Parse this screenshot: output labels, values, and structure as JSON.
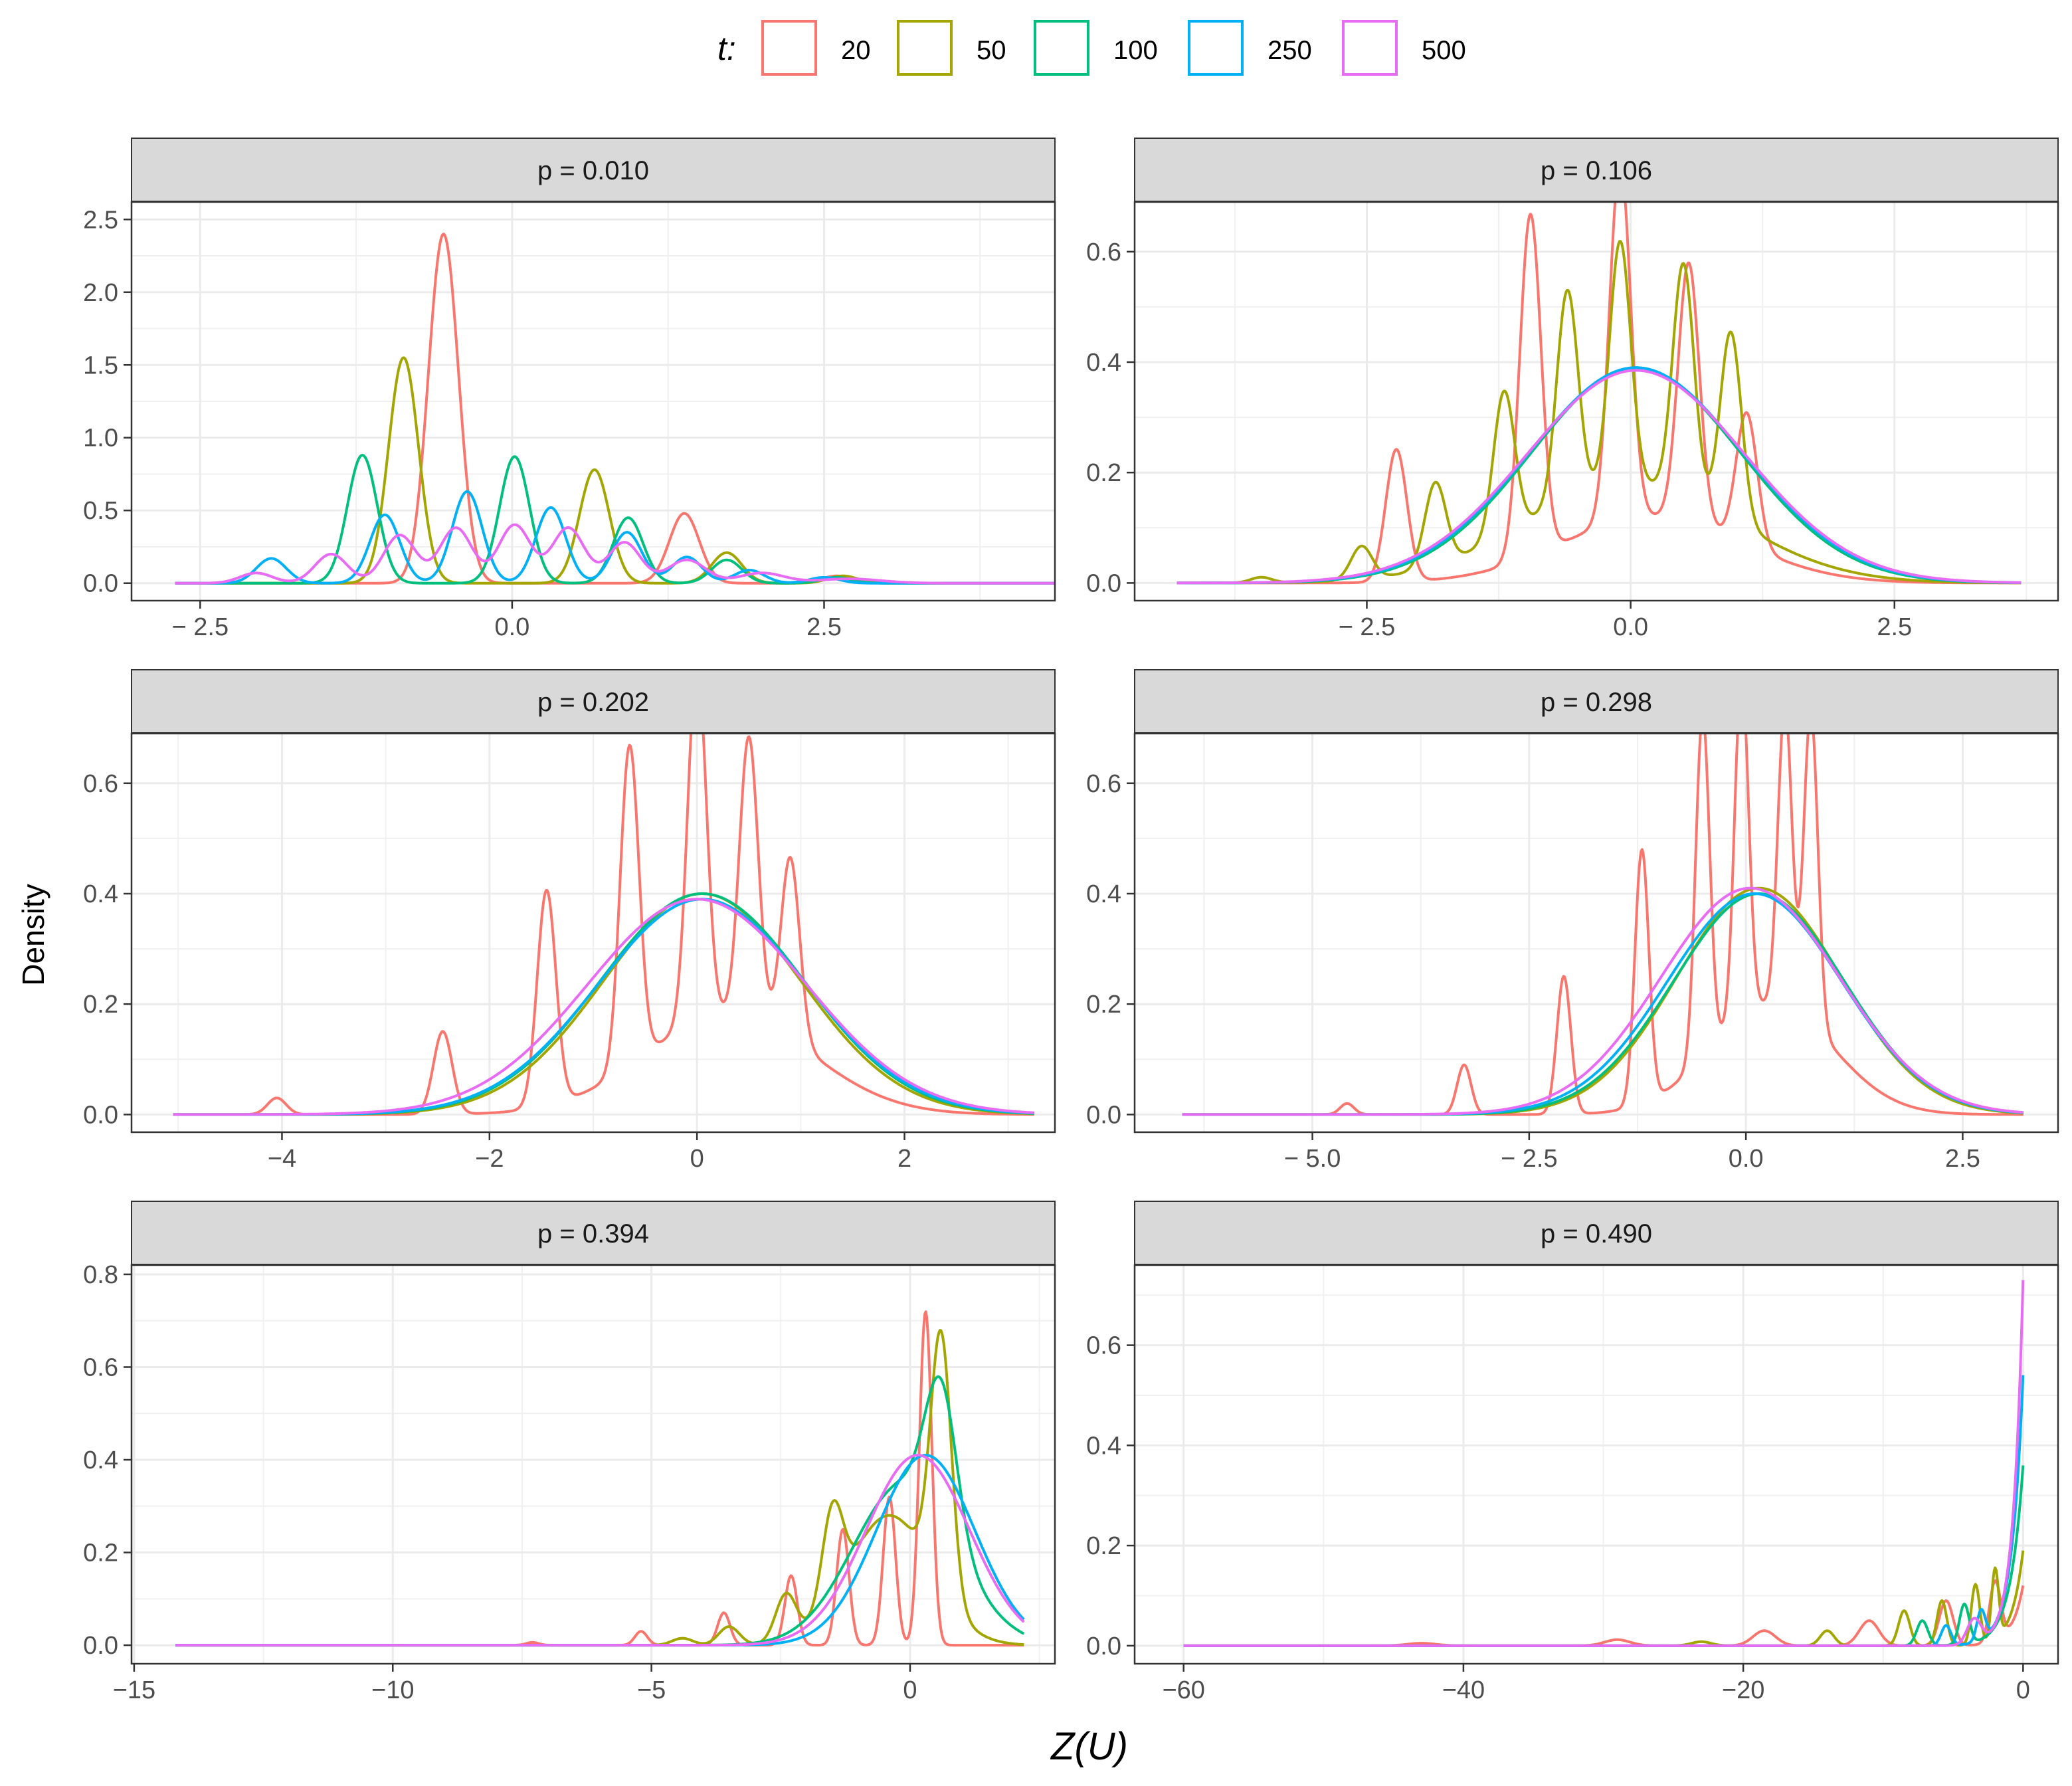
{
  "chart_data": {
    "type": "line",
    "chart_kind": "faceted density curves",
    "xlabel": "Z(U)",
    "ylabel": "Density",
    "legend": {
      "title": "t:",
      "position": "top",
      "entries": [
        {
          "label": "20",
          "color": "#F8766D"
        },
        {
          "label": "50",
          "color": "#A3A500"
        },
        {
          "label": "100",
          "color": "#00BF7D"
        },
        {
          "label": "250",
          "color": "#00B0F6"
        },
        {
          "label": "500",
          "color": "#E76BF3"
        }
      ]
    },
    "panels": [
      {
        "label": "p = 0.010",
        "xlim": [
          -3.05,
          4.35
        ],
        "ylim": [
          -0.12,
          2.62
        ],
        "xticks": [
          -2.5,
          0,
          2.5
        ],
        "xtick_labels": [
          "− 2.5",
          "0.0",
          "2.5"
        ],
        "yticks": [
          0,
          0.5,
          1,
          1.5,
          2,
          2.5
        ],
        "ytick_labels": [
          "0.0",
          "0.5",
          "1.0",
          "1.5",
          "2.0",
          "2.5"
        ],
        "domain": [
          -2.7,
          4.5
        ],
        "series": [
          {
            "name": "20",
            "peaks": [
              [
                -0.55,
                2.4,
                0.12
              ],
              [
                1.38,
                0.48,
                0.12
              ],
              [
                2.6,
                0.05,
                0.12
              ]
            ]
          },
          {
            "name": "50",
            "peaks": [
              [
                -0.87,
                1.55,
                0.12
              ],
              [
                0.66,
                0.78,
                0.12
              ],
              [
                1.72,
                0.21,
                0.12
              ],
              [
                2.65,
                0.05,
                0.12
              ]
            ]
          },
          {
            "name": "100",
            "peaks": [
              [
                -1.2,
                0.88,
                0.12
              ],
              [
                0.02,
                0.87,
                0.12
              ],
              [
                0.93,
                0.45,
                0.12
              ],
              [
                1.72,
                0.16,
                0.12
              ],
              [
                2.6,
                0.04,
                0.12
              ]
            ]
          },
          {
            "name": "250",
            "peaks": [
              [
                -1.93,
                0.17,
                0.12
              ],
              [
                -1.02,
                0.47,
                0.12
              ],
              [
                -0.36,
                0.63,
                0.12
              ],
              [
                0.31,
                0.52,
                0.12
              ],
              [
                0.92,
                0.35,
                0.12
              ],
              [
                1.4,
                0.18,
                0.12
              ],
              [
                1.9,
                0.09,
                0.12
              ],
              [
                2.5,
                0.04,
                0.12
              ]
            ]
          },
          {
            "name": "500",
            "peaks": [
              [
                -2.05,
                0.07,
                0.13
              ],
              [
                -1.45,
                0.2,
                0.13
              ],
              [
                -0.9,
                0.33,
                0.13
              ],
              [
                -0.45,
                0.38,
                0.13
              ],
              [
                0.02,
                0.4,
                0.13
              ],
              [
                0.45,
                0.38,
                0.13
              ],
              [
                0.9,
                0.28,
                0.13
              ],
              [
                1.4,
                0.16,
                0.15
              ],
              [
                2.0,
                0.07,
                0.18
              ],
              [
                2.7,
                0.03,
                0.25
              ]
            ]
          }
        ]
      },
      {
        "label": "p = 0.106",
        "xlim": [
          -4.7,
          4.05
        ],
        "ylim": [
          -0.032,
          0.69
        ],
        "xticks": [
          -2.5,
          0,
          2.5
        ],
        "xtick_labels": [
          "− 2.5",
          "0.0",
          "2.5"
        ],
        "yticks": [
          0,
          0.2,
          0.4,
          0.6
        ],
        "ytick_labels": [
          "0.0",
          "0.2",
          "0.4",
          "0.6"
        ],
        "domain": [
          -4.3,
          3.7
        ],
        "series": [
          {
            "name": "20",
            "peaks": [
              [
                -2.22,
                0.24,
                0.1
              ],
              [
                -0.95,
                0.62,
                0.1
              ],
              [
                -0.1,
                0.65,
                0.1
              ],
              [
                0.55,
                0.47,
                0.1
              ],
              [
                1.1,
                0.24,
                0.1
              ]
            ],
            "base": {
              "mu": 0.2,
              "sigma": 0.85,
              "amp": 0.12
            }
          },
          {
            "name": "50",
            "peaks": [
              [
                -3.5,
                0.01,
                0.1
              ],
              [
                -2.55,
                0.06,
                0.1
              ],
              [
                -1.85,
                0.15,
                0.1
              ],
              [
                -1.2,
                0.26,
                0.1
              ],
              [
                -0.6,
                0.38,
                0.1
              ],
              [
                -0.1,
                0.44,
                0.1
              ],
              [
                0.5,
                0.42,
                0.1
              ],
              [
                0.95,
                0.34,
                0.1
              ]
            ],
            "base": {
              "mu": 0.0,
              "sigma": 1.0,
              "amp": 0.18
            }
          },
          {
            "name": "100",
            "base": {
              "mu": 0.05,
              "sigma": 0.99,
              "amp": 0.39
            }
          },
          {
            "name": "250",
            "base": {
              "mu": 0.05,
              "sigma": 1.01,
              "amp": 0.39
            }
          },
          {
            "name": "500",
            "base": {
              "mu": 0.05,
              "sigma": 1.03,
              "amp": 0.385
            }
          }
        ]
      },
      {
        "label": "p = 0.202",
        "xlim": [
          -5.45,
          3.45
        ],
        "ylim": [
          -0.032,
          0.69
        ],
        "xticks": [
          -4,
          -2,
          0,
          2
        ],
        "xtick_labels": [
          "−4",
          "−2",
          "0",
          "2"
        ],
        "yticks": [
          0,
          0.2,
          0.4,
          0.6
        ],
        "ytick_labels": [
          "0.0",
          "0.2",
          "0.4",
          "0.6"
        ],
        "domain": [
          -5.05,
          3.25
        ],
        "series": [
          {
            "name": "20",
            "peaks": [
              [
                -4.05,
                0.03,
                0.09
              ],
              [
                -2.45,
                0.15,
                0.09
              ],
              [
                -1.45,
                0.39,
                0.09
              ],
              [
                -0.65,
                0.58,
                0.09
              ],
              [
                0.0,
                0.65,
                0.09
              ],
              [
                0.5,
                0.51,
                0.09
              ],
              [
                0.9,
                0.33,
                0.09
              ]
            ],
            "base": {
              "mu": 0.3,
              "sigma": 0.8,
              "amp": 0.18
            }
          },
          {
            "name": "50",
            "base": {
              "mu": 0.05,
              "sigma": 0.95,
              "amp": 0.4
            }
          },
          {
            "name": "100",
            "base": {
              "mu": 0.05,
              "sigma": 0.98,
              "amp": 0.4
            }
          },
          {
            "name": "250",
            "base": {
              "mu": 0.05,
              "sigma": 1.0,
              "amp": 0.39
            }
          },
          {
            "name": "500",
            "base": {
              "mu": 0.0,
              "sigma": 1.05,
              "amp": 0.39
            }
          }
        ]
      },
      {
        "label": "p = 0.298",
        "xlim": [
          -7.05,
          3.6
        ],
        "ylim": [
          -0.032,
          0.69
        ],
        "xticks": [
          -5,
          -2.5,
          0,
          2.5
        ],
        "xtick_labels": [
          "− 5.0",
          "− 2.5",
          "0.0",
          "2.5"
        ],
        "yticks": [
          0,
          0.2,
          0.4,
          0.6
        ],
        "ytick_labels": [
          "0.0",
          "0.2",
          "0.4",
          "0.6"
        ],
        "domain": [
          -6.5,
          3.2
        ],
        "series": [
          {
            "name": "20",
            "peaks": [
              [
                -4.6,
                0.02,
                0.08
              ],
              [
                -3.25,
                0.09,
                0.08
              ],
              [
                -2.1,
                0.25,
                0.08
              ],
              [
                -1.2,
                0.46,
                0.08
              ],
              [
                -0.5,
                0.62,
                0.08
              ],
              [
                -0.05,
                0.62,
                0.08
              ],
              [
                0.45,
                0.55,
                0.08
              ],
              [
                0.75,
                0.57,
                0.08
              ]
            ],
            "base": {
              "mu": 0.3,
              "sigma": 0.7,
              "amp": 0.2
            }
          },
          {
            "name": "50",
            "base": {
              "mu": 0.15,
              "sigma": 0.95,
              "amp": 0.41
            }
          },
          {
            "name": "100",
            "base": {
              "mu": 0.15,
              "sigma": 0.98,
              "amp": 0.4
            }
          },
          {
            "name": "250",
            "base": {
              "mu": 0.1,
              "sigma": 1.0,
              "amp": 0.4
            }
          },
          {
            "name": "500",
            "base": {
              "mu": 0.05,
              "sigma": 1.03,
              "amp": 0.41
            }
          }
        ]
      },
      {
        "label": "p = 0.394",
        "xlim": [
          -15.05,
          2.8
        ],
        "ylim": [
          -0.04,
          0.82
        ],
        "xticks": [
          -15,
          -10,
          -5,
          0
        ],
        "xtick_labels": [
          "−15",
          "−10",
          "−5",
          "0"
        ],
        "yticks": [
          0,
          0.2,
          0.4,
          0.6,
          0.8
        ],
        "ytick_labels": [
          "0.0",
          "0.2",
          "0.4",
          "0.6",
          "0.8"
        ],
        "domain": [
          -14.2,
          2.2
        ],
        "series": [
          {
            "name": "20",
            "peaks": [
              [
                -7.3,
                0.006,
                0.12
              ],
              [
                -5.2,
                0.03,
                0.12
              ],
              [
                -3.6,
                0.07,
                0.12
              ],
              [
                -2.3,
                0.15,
                0.12
              ],
              [
                -1.3,
                0.25,
                0.12
              ],
              [
                -0.4,
                0.32,
                0.12
              ],
              [
                0.3,
                0.72,
                0.12
              ]
            ]
          },
          {
            "name": "50",
            "peaks": [
              [
                -4.4,
                0.015,
                0.2
              ],
              [
                -3.5,
                0.04,
                0.2
              ],
              [
                -2.4,
                0.1,
                0.2
              ],
              [
                -1.5,
                0.2,
                0.2
              ],
              [
                0.6,
                0.55,
                0.2
              ]
            ],
            "base": {
              "mu": -0.4,
              "sigma": 0.8,
              "amp": 0.28
            }
          },
          {
            "name": "100",
            "peaks": [
              [
                0.6,
                0.3,
                0.3
              ]
            ],
            "base": {
              "mu": -0.1,
              "sigma": 1.0,
              "amp": 0.35
            }
          },
          {
            "name": "250",
            "base": {
              "mu": 0.3,
              "sigma": 0.95,
              "amp": 0.41
            }
          },
          {
            "name": "500",
            "base": {
              "mu": 0.15,
              "sigma": 1.0,
              "amp": 0.41
            }
          }
        ]
      },
      {
        "label": "p = 0.490",
        "xlim": [
          -63.5,
          2.5
        ],
        "ylim": [
          -0.036,
          0.76
        ],
        "xticks": [
          -60,
          -40,
          -20,
          0
        ],
        "xtick_labels": [
          "−60",
          "−40",
          "−20",
          "0"
        ],
        "yticks": [
          0,
          0.2,
          0.4,
          0.6
        ],
        "ytick_labels": [
          "0.0",
          "0.2",
          "0.4",
          "0.6"
        ],
        "domain": [
          -60,
          0
        ],
        "series": [
          {
            "name": "20",
            "peaks": [
              [
                -43,
                0.005,
                1.0
              ],
              [
                -29,
                0.012,
                0.9
              ],
              [
                -18.5,
                0.03,
                0.8
              ],
              [
                -11,
                0.05,
                0.7
              ],
              [
                -5.5,
                0.09,
                0.5
              ],
              [
                -2,
                0.12,
                0.4
              ]
            ],
            "tail": {
              "amp": 0.12,
              "scale": 0.8
            }
          },
          {
            "name": "50",
            "peaks": [
              [
                -23,
                0.008,
                0.7
              ],
              [
                -14,
                0.03,
                0.5
              ],
              [
                -8.5,
                0.07,
                0.4
              ],
              [
                -5.8,
                0.09,
                0.35
              ],
              [
                -3.4,
                0.12,
                0.3
              ],
              [
                -2.0,
                0.14,
                0.25
              ]
            ],
            "tail": {
              "amp": 0.19,
              "scale": 0.8
            }
          },
          {
            "name": "100",
            "peaks": [
              [
                -7.2,
                0.05,
                0.4
              ],
              [
                -4.2,
                0.08,
                0.35
              ]
            ],
            "tail": {
              "amp": 0.36,
              "scale": 0.9
            }
          },
          {
            "name": "250",
            "peaks": [
              [
                -5.5,
                0.04,
                0.35
              ],
              [
                -3.0,
                0.06,
                0.3
              ]
            ],
            "tail": {
              "amp": 0.54,
              "scale": 0.8
            }
          },
          {
            "name": "500",
            "peaks": [
              [
                -3.5,
                0.05,
                0.5
              ]
            ],
            "tail": {
              "amp": 0.73,
              "scale": 0.7
            }
          }
        ]
      }
    ]
  }
}
